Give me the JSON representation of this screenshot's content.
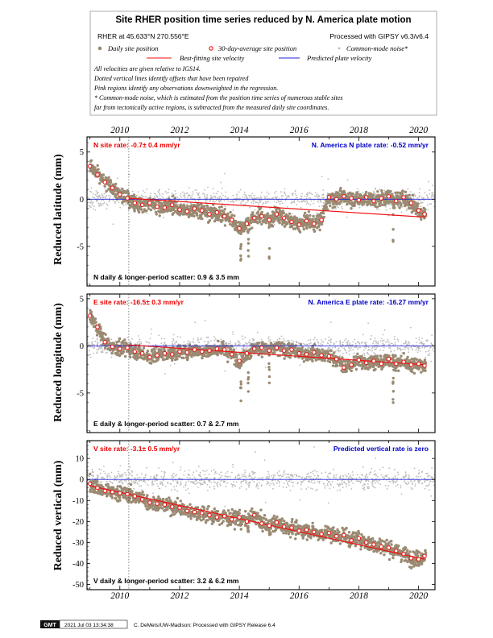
{
  "header": {
    "title": "Site RHER position time series reduced by N. America plate motion",
    "location": "RHER at 45.633°N 270.556°E",
    "processing": "Processed with GIPSY v6.3/v6.4",
    "legend": {
      "daily": "Daily site position",
      "avg30": "30-day-average site position",
      "cm_noise": "Common-mode noise*",
      "best_fit": "Best-fitting site velocity",
      "predicted": "Predicted plate velocity"
    },
    "notes": [
      "All velocities are given relative to IGS14.",
      "Dotted vertical lines identify offsets that have been repaired",
      "Pink regions identify any observations downweighted in the regression.",
      "* Common-mode noise, which is estimated from the position time series of numerous stable sites",
      "far from tectonically active regions, is subtracted from the measured daily site coordinates."
    ]
  },
  "footer": {
    "logo": "GMT",
    "timestamp": "2021 Jul 03 13:34:38",
    "credit": "C. DeMets/UW-Madison: Processed with GIPSY Release 6.4"
  },
  "colors": {
    "daily": "#9a8a72",
    "noise": "#bbbbbb",
    "avg_stroke": "#ee1111",
    "fit": "#ee1111",
    "plate": "#2222dd",
    "site_text": "#ee0000",
    "plate_text": "#0000cc"
  },
  "chart_data": [
    {
      "type": "scatter",
      "component": "N",
      "ylabel": "Reduced latitude (mm)",
      "xlim": [
        2008.9,
        2020.55
      ],
      "ylim": [
        -9.2,
        6.6
      ],
      "yticks": [
        -5,
        0,
        5
      ],
      "xticks": [
        2010,
        2012,
        2014,
        2016,
        2018,
        2020
      ],
      "offset_year": 2010.3,
      "site_rate": "N site rate:  -0.7± 0.4 mm/yr",
      "plate_rate": "N. America N plate rate:  -0.52 mm/yr",
      "scatter_text": "N daily & longer-period scatter:   0.9 &   3.5 mm",
      "best_fit": [
        [
          2010.3,
          0.1
        ],
        [
          2020.2,
          -1.9
        ]
      ],
      "predicted": 0,
      "avg_30day": [
        [
          2009.0,
          3.5
        ],
        [
          2009.25,
          2.6
        ],
        [
          2009.5,
          1.8
        ],
        [
          2009.75,
          1.2
        ],
        [
          2010.0,
          0.5
        ],
        [
          2010.25,
          0.1
        ],
        [
          2010.5,
          -0.4
        ],
        [
          2010.75,
          -0.6
        ],
        [
          2011.0,
          -0.4
        ],
        [
          2011.25,
          -0.8
        ],
        [
          2011.5,
          -0.9
        ],
        [
          2011.75,
          -0.6
        ],
        [
          2012.0,
          -1.1
        ],
        [
          2012.25,
          -1.3
        ],
        [
          2012.5,
          -1.0
        ],
        [
          2012.75,
          -1.2
        ],
        [
          2013.0,
          -1.6
        ],
        [
          2013.25,
          -1.4
        ],
        [
          2013.5,
          -1.8
        ],
        [
          2013.75,
          -2.2
        ],
        [
          2014.0,
          -3.1
        ],
        [
          2014.25,
          -2.6
        ],
        [
          2014.5,
          -2.0
        ],
        [
          2014.75,
          -1.8
        ],
        [
          2015.0,
          -2.2
        ],
        [
          2015.25,
          -1.6
        ],
        [
          2015.5,
          -2.0
        ],
        [
          2015.75,
          -2.4
        ],
        [
          2016.0,
          -2.7
        ],
        [
          2016.25,
          -2.3
        ],
        [
          2016.5,
          -2.6
        ],
        [
          2016.75,
          -2.2
        ],
        [
          2017.0,
          0.2
        ],
        [
          2017.25,
          0.0
        ],
        [
          2017.5,
          0.3
        ],
        [
          2017.75,
          0.1
        ],
        [
          2018.0,
          -0.1
        ],
        [
          2018.25,
          0.2
        ],
        [
          2018.5,
          -0.2
        ],
        [
          2018.75,
          0.1
        ],
        [
          2019.0,
          0.3
        ],
        [
          2019.25,
          -0.2
        ],
        [
          2019.5,
          0.2
        ],
        [
          2019.75,
          -0.4
        ],
        [
          2020.0,
          -1.2
        ],
        [
          2020.2,
          -1.6
        ]
      ]
    },
    {
      "type": "scatter",
      "component": "E",
      "ylabel": "Reduced longitude (mm)",
      "xlim": [
        2008.9,
        2020.55
      ],
      "ylim": [
        -9.2,
        5.5
      ],
      "yticks": [
        -5,
        0,
        5
      ],
      "xticks": [
        2010,
        2012,
        2014,
        2016,
        2018,
        2020
      ],
      "offset_year": 2010.3,
      "site_rate": "E site rate:  -16.5± 0.3 mm/yr",
      "plate_rate": "N. America E plate rate:  -16.27 mm/yr",
      "scatter_text": "E daily & longer-period scatter:   0.7 &   2.7 mm",
      "best_fit": [
        [
          2010.3,
          0.1
        ],
        [
          2020.2,
          -2.0
        ]
      ],
      "predicted": 0,
      "avg_30day": [
        [
          2009.0,
          3.2
        ],
        [
          2009.25,
          2.0
        ],
        [
          2009.5,
          0.4
        ],
        [
          2009.75,
          -0.1
        ],
        [
          2010.0,
          -0.3
        ],
        [
          2010.25,
          -0.2
        ],
        [
          2010.5,
          -0.6
        ],
        [
          2010.75,
          -0.8
        ],
        [
          2011.0,
          -1.2
        ],
        [
          2011.25,
          -1.0
        ],
        [
          2011.5,
          -0.8
        ],
        [
          2011.75,
          -0.9
        ],
        [
          2012.0,
          -0.6
        ],
        [
          2012.25,
          -0.7
        ],
        [
          2012.5,
          -0.4
        ],
        [
          2012.75,
          -0.6
        ],
        [
          2013.0,
          -0.5
        ],
        [
          2013.25,
          -0.3
        ],
        [
          2013.5,
          -0.4
        ],
        [
          2013.75,
          -0.9
        ],
        [
          2014.0,
          -1.6
        ],
        [
          2014.25,
          -0.8
        ],
        [
          2014.5,
          -0.3
        ],
        [
          2014.75,
          -0.2
        ],
        [
          2015.0,
          -0.5
        ],
        [
          2015.25,
          -0.2
        ],
        [
          2015.5,
          -0.5
        ],
        [
          2015.75,
          -0.4
        ],
        [
          2016.0,
          -0.8
        ],
        [
          2016.25,
          -0.9
        ],
        [
          2016.5,
          -0.7
        ],
        [
          2016.75,
          -1.0
        ],
        [
          2017.0,
          -1.1
        ],
        [
          2017.25,
          -1.4
        ],
        [
          2017.5,
          -2.3
        ],
        [
          2017.75,
          -2.0
        ],
        [
          2018.0,
          -1.5
        ],
        [
          2018.25,
          -1.8
        ],
        [
          2018.5,
          -1.6
        ],
        [
          2018.75,
          -1.9
        ],
        [
          2019.0,
          -1.4
        ],
        [
          2019.25,
          -1.9
        ],
        [
          2019.5,
          -1.7
        ],
        [
          2019.75,
          -2.0
        ],
        [
          2020.0,
          -1.9
        ],
        [
          2020.2,
          -2.1
        ]
      ]
    },
    {
      "type": "scatter",
      "component": "V",
      "ylabel": "Reduced vertical (mm)",
      "xlim": [
        2008.9,
        2020.55
      ],
      "ylim": [
        -52.5,
        18.5
      ],
      "yticks": [
        -50,
        -40,
        -30,
        -20,
        -10,
        0,
        10
      ],
      "xticks": [
        2010,
        2012,
        2014,
        2016,
        2018,
        2020
      ],
      "xticklabels": [
        "2010",
        "2012",
        "2014",
        "2016",
        "2018",
        "2020"
      ],
      "offset_year": 2010.3,
      "site_rate": "V site rate:  -3.1± 0.5 mm/yr",
      "plate_rate": "Predicted vertical rate is zero",
      "scatter_text": "V daily & longer-period scatter:   3.2 &   6.2 mm",
      "best_fit": [
        [
          2009.0,
          -3.0
        ],
        [
          2020.2,
          -38.0
        ]
      ],
      "predicted": 0,
      "avg_30day": [
        [
          2009.0,
          -2.0
        ],
        [
          2009.25,
          -4.0
        ],
        [
          2009.5,
          -5.5
        ],
        [
          2009.75,
          -6.0
        ],
        [
          2010.0,
          -6.5
        ],
        [
          2010.25,
          -7.0
        ],
        [
          2010.5,
          -8.0
        ],
        [
          2010.75,
          -9.5
        ],
        [
          2011.0,
          -11.0
        ],
        [
          2011.25,
          -11.5
        ],
        [
          2011.5,
          -12.0
        ],
        [
          2011.75,
          -13.0
        ],
        [
          2012.0,
          -13.5
        ],
        [
          2012.25,
          -15.0
        ],
        [
          2012.5,
          -15.5
        ],
        [
          2012.75,
          -16.0
        ],
        [
          2013.0,
          -17.0
        ],
        [
          2013.25,
          -18.0
        ],
        [
          2013.5,
          -17.5
        ],
        [
          2013.75,
          -19.0
        ],
        [
          2014.0,
          -18.0
        ],
        [
          2014.25,
          -20.0
        ],
        [
          2014.5,
          -17.0
        ],
        [
          2014.75,
          -21.0
        ],
        [
          2015.0,
          -22.0
        ],
        [
          2015.25,
          -20.5
        ],
        [
          2015.5,
          -22.5
        ],
        [
          2015.75,
          -23.0
        ],
        [
          2016.0,
          -24.5
        ],
        [
          2016.25,
          -24.0
        ],
        [
          2016.5,
          -25.0
        ],
        [
          2016.75,
          -26.0
        ],
        [
          2017.0,
          -25.5
        ],
        [
          2017.25,
          -27.0
        ],
        [
          2017.5,
          -26.5
        ],
        [
          2017.75,
          -29.0
        ],
        [
          2018.0,
          -28.0
        ],
        [
          2018.25,
          -30.0
        ],
        [
          2018.5,
          -31.0
        ],
        [
          2018.75,
          -32.0
        ],
        [
          2019.0,
          -32.5
        ],
        [
          2019.25,
          -34.0
        ],
        [
          2019.5,
          -35.5
        ],
        [
          2019.75,
          -37.5
        ],
        [
          2020.0,
          -38.0
        ],
        [
          2020.2,
          -36.5
        ]
      ]
    }
  ]
}
